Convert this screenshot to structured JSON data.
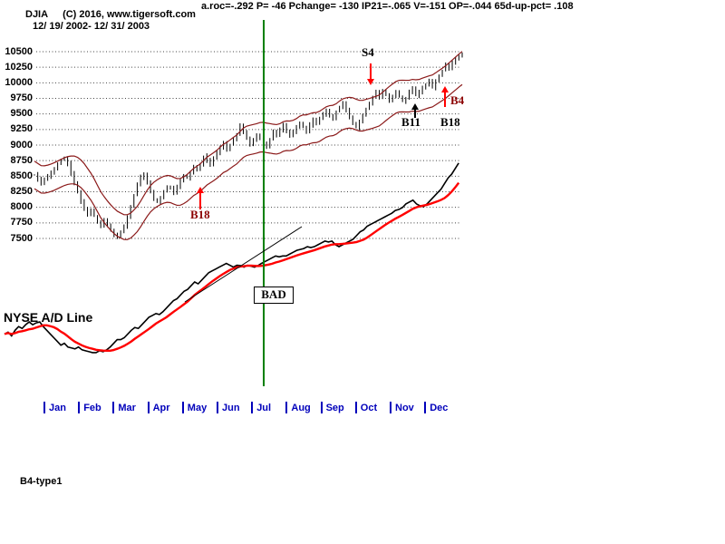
{
  "header": {
    "stats_line": "a.roc=-.292 P= -46 Pchange= -130 IP21=-.065 V=-151 OP=-.044 65d-up-pct= .108",
    "symbol": "DJIA",
    "copyright": "(C) 2016, www.tigersoft.com",
    "date_range": "12/ 19/ 2002- 12/ 31/ 2003"
  },
  "labels": {
    "ad_line": "NYSE A/D Line",
    "bad": "BAD"
  },
  "footer": {
    "signal_label": "B4-type1"
  },
  "colors": {
    "price_bars": "#000000",
    "envelope_band": "#8b1a1a",
    "ad_line": "#000000",
    "ad_moving_average": "#ff0000",
    "month_axis_blue": "#0000bb",
    "grid_dots": "#444444",
    "vertical_marker_green": "#008000",
    "arrow_red": "#ff0000",
    "text": "#000000"
  },
  "chart_data": {
    "type": "line",
    "style": "daily OHLC-style price bars with moving-average envelope bands, plus cumulative advance/decline line with red moving average",
    "title": "DJIA 12/19/2002 - 12/31/2003 with NYSE A/D Line",
    "x_axis": {
      "months": [
        "Jan",
        "Feb",
        "Mar",
        "Apr",
        "May",
        "Jun",
        "Jul",
        "Aug",
        "Sep",
        "Oct",
        "Nov",
        "Dec"
      ],
      "range": "12/19/2002 - 12/31/2003"
    },
    "y_axis": {
      "ticks": [
        10500,
        10250,
        10000,
        9750,
        9500,
        9250,
        9000,
        8750,
        8500,
        8250,
        8000,
        7750,
        7500
      ],
      "min": 7500,
      "max": 10500,
      "grid": "dotted"
    },
    "series": [
      {
        "name": "DJIA close (sampled ~2-day)",
        "values": [
          8520,
          8450,
          8380,
          8440,
          8500,
          8560,
          8620,
          8700,
          8760,
          8800,
          8700,
          8540,
          8380,
          8240,
          8100,
          7980,
          7880,
          7960,
          7860,
          7780,
          7700,
          7780,
          7700,
          7620,
          7560,
          7524,
          7600,
          7700,
          7850,
          8020,
          8200,
          8350,
          8480,
          8520,
          8400,
          8250,
          8120,
          8080,
          8160,
          8260,
          8340,
          8300,
          8240,
          8320,
          8420,
          8500,
          8470,
          8560,
          8660,
          8600,
          8700,
          8820,
          8750,
          8680,
          8780,
          8880,
          8960,
          9040,
          8920,
          9000,
          9100,
          9180,
          9300,
          9200,
          9100,
          9020,
          9080,
          9160,
          9100,
          9040,
          8980,
          9100,
          9200,
          9140,
          9240,
          9320,
          9220,
          9140,
          9220,
          9300,
          9360,
          9300,
          9200,
          9320,
          9400,
          9350,
          9420,
          9500,
          9560,
          9480,
          9420,
          9540,
          9620,
          9660,
          9560,
          9440,
          9340,
          9280,
          9380,
          9480,
          9580,
          9680,
          9780,
          9840,
          9760,
          9860,
          9800,
          9720,
          9780,
          9860,
          9780,
          9700,
          9760,
          9840,
          9900,
          9800,
          9850,
          9920,
          9960,
          10040,
          9920,
          10040,
          10120,
          10200,
          10280,
          10240,
          10320,
          10380,
          10420,
          10460
        ]
      },
      {
        "name": "NYSE A/D Line (normalized 0-1)",
        "values": [
          0.12,
          0.13,
          0.11,
          0.14,
          0.16,
          0.15,
          0.17,
          0.185,
          0.17,
          0.18,
          0.185,
          0.16,
          0.14,
          0.12,
          0.1,
          0.08,
          0.06,
          0.07,
          0.05,
          0.045,
          0.04,
          0.05,
          0.035,
          0.03,
          0.025,
          0.02,
          0.02,
          0.03,
          0.025,
          0.035,
          0.05,
          0.07,
          0.09,
          0.09,
          0.1,
          0.12,
          0.14,
          0.155,
          0.15,
          0.17,
          0.19,
          0.21,
          0.22,
          0.23,
          0.225,
          0.24,
          0.26,
          0.28,
          0.3,
          0.31,
          0.33,
          0.35,
          0.36,
          0.38,
          0.4,
          0.39,
          0.41,
          0.43,
          0.45,
          0.46,
          0.47,
          0.48,
          0.49,
          0.5,
          0.49,
          0.48,
          0.49,
          0.488,
          0.48,
          0.49,
          0.485,
          0.48,
          0.488,
          0.5,
          0.51,
          0.52,
          0.53,
          0.54,
          0.535,
          0.54,
          0.54,
          0.55,
          0.56,
          0.57,
          0.575,
          0.58,
          0.59,
          0.585,
          0.59,
          0.6,
          0.61,
          0.62,
          0.615,
          0.62,
          0.6,
          0.59,
          0.6,
          0.61,
          0.62,
          0.63,
          0.65,
          0.67,
          0.68,
          0.7,
          0.71,
          0.72,
          0.73,
          0.74,
          0.75,
          0.76,
          0.77,
          0.785,
          0.79,
          0.8,
          0.82,
          0.83,
          0.84,
          0.82,
          0.81,
          0.805,
          0.82,
          0.84,
          0.86,
          0.88,
          0.9,
          0.93,
          0.96,
          0.98,
          1.01,
          1.04
        ]
      }
    ],
    "bands": {
      "type": "ma-envelope",
      "window": 10,
      "pct": 2.6,
      "color": "#8b1a1a"
    },
    "ad_ma": {
      "window": 9,
      "color": "#ff0000",
      "width": 2.4
    },
    "annotations": [
      {
        "type": "text",
        "text": "S4",
        "x": 399,
        "y": 50,
        "color": "#000000"
      },
      {
        "type": "arrow",
        "x": 409,
        "y1": 70,
        "y2": 94,
        "dir": "down",
        "color": "#ff0000"
      },
      {
        "type": "arrow",
        "x": 491,
        "y1": 118,
        "y2": 95,
        "dir": "up",
        "color": "#ff0000"
      },
      {
        "type": "text",
        "text": "B4",
        "x": 497,
        "y": 103,
        "color": "#8b0000"
      },
      {
        "type": "arrow",
        "x": 458,
        "y1": 130,
        "y2": 114,
        "dir": "up",
        "color": "#000000"
      },
      {
        "type": "text",
        "text": "B11",
        "x": 443,
        "y": 127,
        "color": "#000000"
      },
      {
        "type": "text",
        "text": "B18",
        "x": 486,
        "y": 127,
        "color": "#000000"
      },
      {
        "type": "arrow",
        "x": 221,
        "y1": 231,
        "y2": 206,
        "dir": "up",
        "color": "#ff0000"
      },
      {
        "type": "text",
        "text": "B18",
        "x": 210,
        "y": 229,
        "color": "#8b0000"
      },
      {
        "type": "vline",
        "x": 291,
        "y1": 22,
        "y2": 426,
        "color": "#008000",
        "width": 2
      },
      {
        "type": "trendline",
        "x1": 204,
        "y1": 333,
        "x2": 333,
        "y2": 250,
        "color": "#000000"
      }
    ]
  }
}
